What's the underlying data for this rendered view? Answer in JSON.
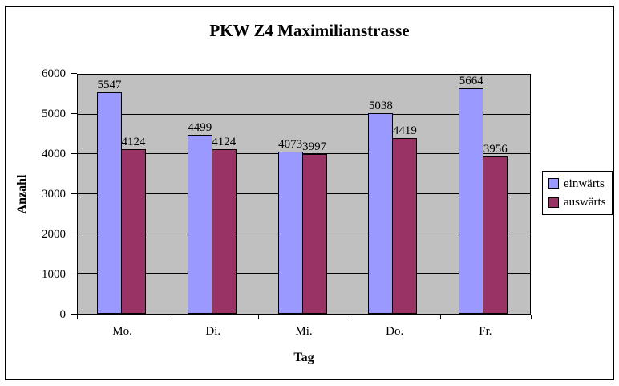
{
  "chart_data": {
    "type": "bar",
    "title": "PKW Z4 Maximilianstrasse",
    "xlabel": "Tag",
    "ylabel": "Anzahl",
    "categories": [
      "Mo.",
      "Di.",
      "Mi.",
      "Do.",
      "Fr."
    ],
    "series": [
      {
        "name": "einwärts",
        "color": "#9999FF",
        "values": [
          5547,
          4499,
          4073,
          5038,
          5664
        ]
      },
      {
        "name": "auswärts",
        "color": "#993366",
        "values": [
          4124,
          4124,
          3997,
          4419,
          3956
        ]
      }
    ],
    "ylim": [
      0,
      6000
    ],
    "ytick_interval": 1000,
    "ytick_labels": [
      "0",
      "1000",
      "2000",
      "3000",
      "4000",
      "5000",
      "6000"
    ],
    "grid": true,
    "data_labels": true,
    "legend_position": "right",
    "plot_background": "#C0C0C0",
    "chart_background": "#FFFFFF",
    "axis_color": "#000000"
  }
}
